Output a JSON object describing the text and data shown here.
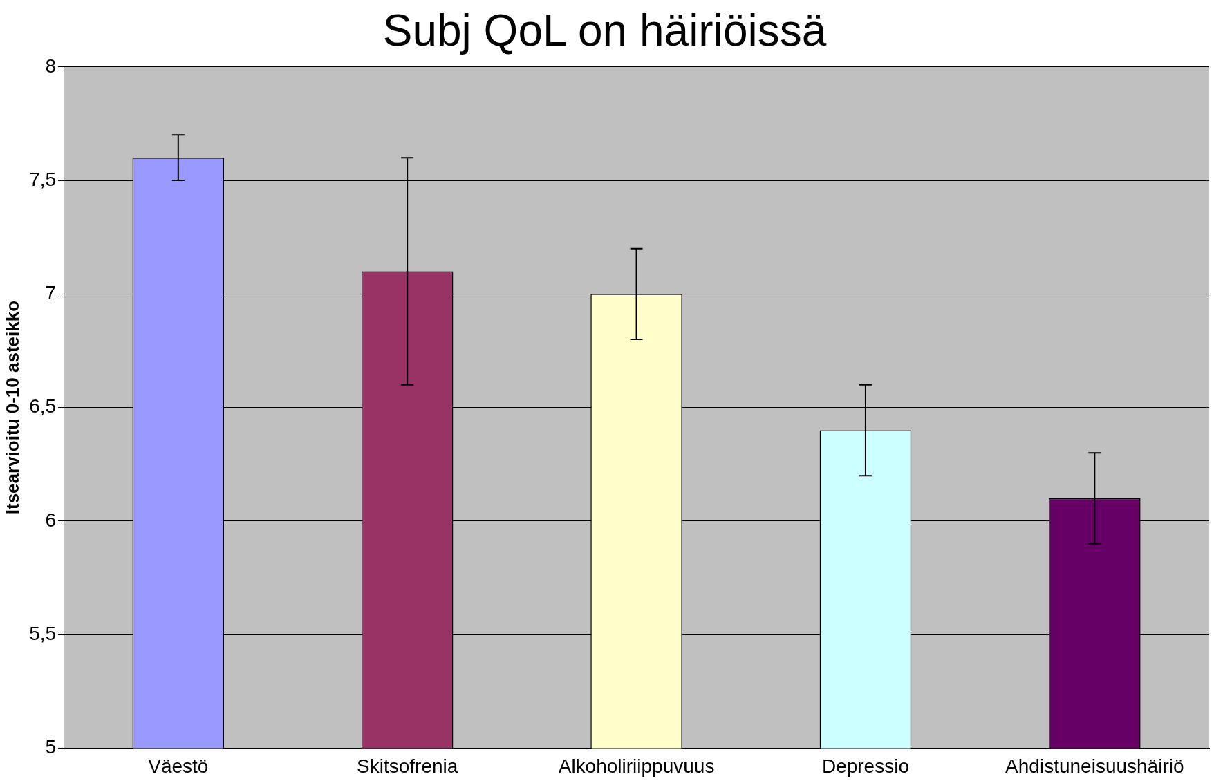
{
  "chart_data": {
    "type": "bar",
    "title": "Subj QoL on häiriöissä",
    "ylabel": "Itsearvioitu 0-10 asteikko",
    "categories": [
      "Väestö",
      "Skitsofrenia",
      "Alkoholiriippuvuus",
      "Depressio",
      "Ahdistuneisuushäiriö"
    ],
    "values": [
      7.6,
      7.1,
      7.0,
      6.4,
      6.1
    ],
    "errors": [
      0.1,
      0.5,
      0.2,
      0.2,
      0.2
    ],
    "colors": [
      "#9999ff",
      "#993366",
      "#ffffcc",
      "#ccffff",
      "#660066"
    ],
    "ylim": [
      5,
      8
    ],
    "yticks": [
      {
        "value": 5,
        "label": "5"
      },
      {
        "value": 5.5,
        "label": "5,5"
      },
      {
        "value": 6,
        "label": "6"
      },
      {
        "value": 6.5,
        "label": "6,5"
      },
      {
        "value": 7,
        "label": "7"
      },
      {
        "value": 7.5,
        "label": "7,5"
      },
      {
        "value": 8,
        "label": "8"
      }
    ],
    "grid": "y",
    "legend": false
  }
}
